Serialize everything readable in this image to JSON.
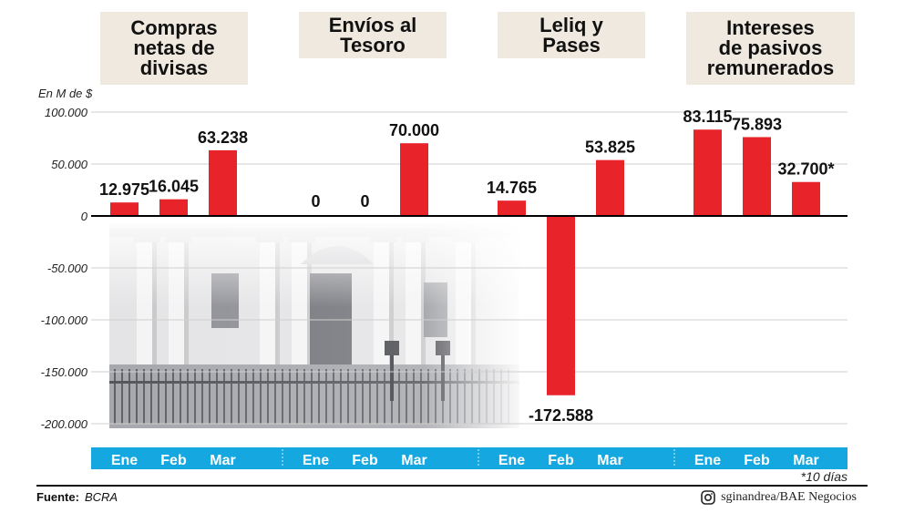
{
  "unit_label": "En M de $",
  "footnote": "*10 días",
  "source_label": "Fuente:",
  "source_value": "BCRA",
  "credit": "sginandrea/BAE Negocios",
  "icons": {
    "credit": "instagram-icon",
    "background": "building-photo"
  },
  "colors": {
    "bar": "#e8232a",
    "axis_band": "#15a8e0",
    "panel_bg": "#efe9df",
    "grid": "#cfcfcf",
    "zero_line": "#000000"
  },
  "chart_data": {
    "type": "bar",
    "ylim": [
      -200000,
      100000
    ],
    "yticks": [
      100000,
      50000,
      0,
      -50000,
      -100000,
      -150000,
      -200000
    ],
    "ytick_labels": [
      "100.000",
      "50.000",
      "0",
      "-50.000",
      "-100.000",
      "-150.000",
      "-200.000"
    ],
    "grid": true,
    "panels": [
      {
        "title": "Compras\nnetas de\ndivisas",
        "categories": [
          "Ene",
          "Feb",
          "Mar"
        ],
        "values": [
          12975,
          16045,
          63238
        ],
        "labels": [
          "12.975",
          "16.045",
          "63.238"
        ]
      },
      {
        "title": "Envíos al\nTesoro",
        "categories": [
          "Ene",
          "Feb",
          "Mar"
        ],
        "values": [
          0,
          0,
          70000
        ],
        "labels": [
          "0",
          "0",
          "70.000"
        ]
      },
      {
        "title": "Leliq y\nPases",
        "categories": [
          "Ene",
          "Feb",
          "Mar"
        ],
        "values": [
          14765,
          -172588,
          53825
        ],
        "labels": [
          "14.765",
          "-172.588",
          "53.825"
        ]
      },
      {
        "title": "Intereses\nde pasivos\nremunerados",
        "categories": [
          "Ene",
          "Feb",
          "Mar"
        ],
        "values": [
          83115,
          75893,
          32700
        ],
        "labels": [
          "83.115",
          "75.893",
          "32.700*"
        ]
      }
    ]
  }
}
